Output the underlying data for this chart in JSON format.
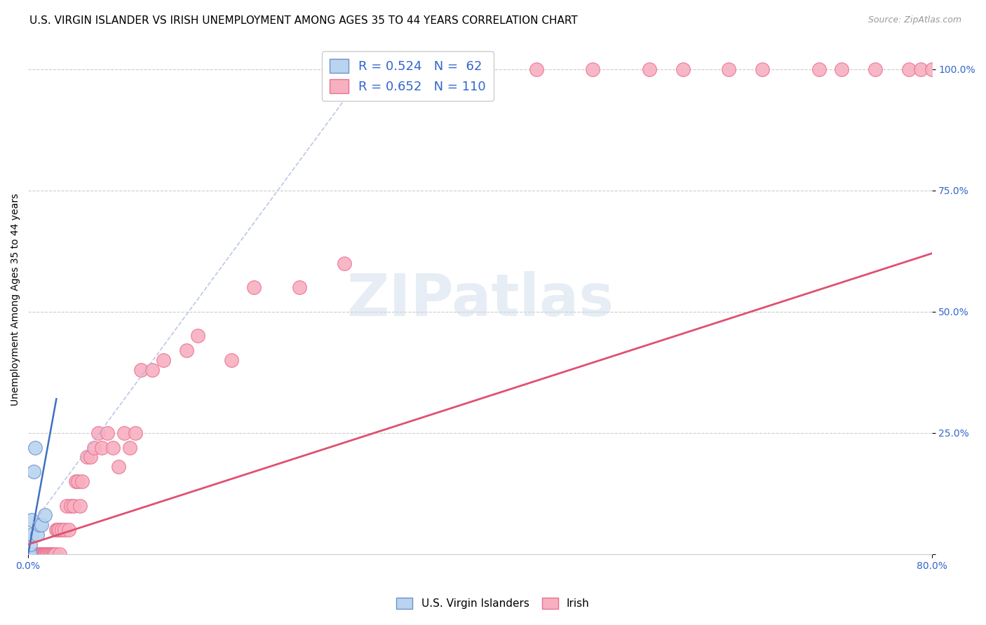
{
  "title": "U.S. VIRGIN ISLANDER VS IRISH UNEMPLOYMENT AMONG AGES 35 TO 44 YEARS CORRELATION CHART",
  "source": "Source: ZipAtlas.com",
  "ylabel": "Unemployment Among Ages 35 to 44 years",
  "yticks": [
    0.0,
    0.25,
    0.5,
    0.75,
    1.0
  ],
  "ytick_labels": [
    "",
    "25.0%",
    "50.0%",
    "75.0%",
    "100.0%"
  ],
  "xtick_left": "0.0%",
  "xtick_right": "80.0%",
  "xmin": 0.0,
  "xmax": 0.8,
  "ymin": 0.0,
  "ymax": 1.05,
  "vi_color": "#b8d4f0",
  "irish_color": "#f8b0c0",
  "vi_edge_color": "#7090c8",
  "irish_edge_color": "#e87090",
  "vi_R": 0.524,
  "vi_N": 62,
  "irish_R": 0.652,
  "irish_N": 110,
  "vi_scatter_x": [
    0.0,
    0.0,
    0.0,
    0.0,
    0.0,
    0.0,
    0.0,
    0.0,
    0.0,
    0.0,
    0.0,
    0.0,
    0.0,
    0.0,
    0.0,
    0.0,
    0.0,
    0.0,
    0.0,
    0.0,
    0.0,
    0.0,
    0.0,
    0.0,
    0.0,
    0.0,
    0.0,
    0.0,
    0.0,
    0.0,
    0.0,
    0.0,
    0.0,
    0.0,
    0.0,
    0.0,
    0.0,
    0.0,
    0.0,
    0.0,
    0.0,
    0.0,
    0.0,
    0.0,
    0.0,
    0.0,
    0.0,
    0.0,
    0.0,
    0.0,
    0.0,
    0.0,
    0.002,
    0.002,
    0.003,
    0.003,
    0.005,
    0.006,
    0.008,
    0.01,
    0.012,
    0.015
  ],
  "vi_scatter_y": [
    0.0,
    0.0,
    0.0,
    0.0,
    0.0,
    0.0,
    0.0,
    0.0,
    0.0,
    0.0,
    0.0,
    0.0,
    0.0,
    0.0,
    0.0,
    0.0,
    0.0,
    0.0,
    0.0,
    0.0,
    0.0,
    0.0,
    0.0,
    0.0,
    0.0,
    0.0,
    0.0,
    0.0,
    0.0,
    0.0,
    0.0,
    0.0,
    0.0,
    0.0,
    0.0,
    0.0,
    0.0,
    0.0,
    0.0,
    0.0,
    0.0,
    0.0,
    0.0,
    0.0,
    0.0,
    0.0,
    0.0,
    0.0,
    0.0,
    0.0,
    0.0,
    0.0,
    0.0,
    0.02,
    0.04,
    0.07,
    0.17,
    0.22,
    0.04,
    0.06,
    0.06,
    0.08
  ],
  "irish_scatter_x": [
    0.0,
    0.0,
    0.0,
    0.0,
    0.0,
    0.0,
    0.0,
    0.0,
    0.0,
    0.0,
    0.0,
    0.0,
    0.0,
    0.0,
    0.0,
    0.0,
    0.0,
    0.0,
    0.0,
    0.0,
    0.002,
    0.002,
    0.002,
    0.003,
    0.003,
    0.004,
    0.004,
    0.005,
    0.005,
    0.006,
    0.006,
    0.007,
    0.007,
    0.008,
    0.008,
    0.009,
    0.009,
    0.009,
    0.01,
    0.01,
    0.01,
    0.011,
    0.011,
    0.012,
    0.012,
    0.013,
    0.013,
    0.014,
    0.014,
    0.015,
    0.015,
    0.016,
    0.017,
    0.017,
    0.018,
    0.019,
    0.02,
    0.021,
    0.022,
    0.023,
    0.024,
    0.025,
    0.026,
    0.027,
    0.028,
    0.03,
    0.032,
    0.034,
    0.036,
    0.038,
    0.04,
    0.042,
    0.044,
    0.046,
    0.048,
    0.052,
    0.055,
    0.058,
    0.062,
    0.065,
    0.07,
    0.075,
    0.08,
    0.085,
    0.09,
    0.095,
    0.1,
    0.11,
    0.12,
    0.14,
    0.15,
    0.18,
    0.2,
    0.24,
    0.28,
    0.3,
    0.35,
    0.4,
    0.45,
    0.5,
    0.55,
    0.58,
    0.62,
    0.65,
    0.7,
    0.72,
    0.75,
    0.78,
    0.79,
    0.8
  ],
  "irish_scatter_y": [
    0.0,
    0.0,
    0.0,
    0.0,
    0.0,
    0.0,
    0.0,
    0.0,
    0.0,
    0.0,
    0.0,
    0.0,
    0.0,
    0.0,
    0.0,
    0.0,
    0.0,
    0.0,
    0.0,
    0.0,
    0.0,
    0.0,
    0.0,
    0.0,
    0.0,
    0.0,
    0.0,
    0.0,
    0.0,
    0.0,
    0.0,
    0.0,
    0.0,
    0.0,
    0.0,
    0.0,
    0.0,
    0.0,
    0.0,
    0.0,
    0.0,
    0.0,
    0.0,
    0.0,
    0.0,
    0.0,
    0.0,
    0.0,
    0.0,
    0.0,
    0.0,
    0.0,
    0.0,
    0.0,
    0.0,
    0.0,
    0.0,
    0.0,
    0.0,
    0.0,
    0.0,
    0.05,
    0.05,
    0.05,
    0.0,
    0.05,
    0.05,
    0.1,
    0.05,
    0.1,
    0.1,
    0.15,
    0.15,
    0.1,
    0.15,
    0.2,
    0.2,
    0.22,
    0.25,
    0.22,
    0.25,
    0.22,
    0.18,
    0.25,
    0.22,
    0.25,
    0.38,
    0.38,
    0.4,
    0.42,
    0.45,
    0.4,
    0.55,
    0.55,
    0.6,
    1.0,
    1.0,
    1.0,
    1.0,
    1.0,
    1.0,
    1.0,
    1.0,
    1.0,
    1.0,
    1.0,
    1.0,
    1.0,
    1.0,
    1.0
  ],
  "vi_trend_x1": 0.0,
  "vi_trend_y1": 0.0,
  "vi_trend_x2": 0.025,
  "vi_trend_y2": 0.32,
  "vi_trend_dashed_x1": 0.0,
  "vi_trend_dashed_y1": 0.05,
  "vi_trend_dashed_x2": 0.3,
  "vi_trend_dashed_y2": 1.0,
  "irish_trend_x1": 0.0,
  "irish_trend_y1": 0.02,
  "irish_trend_x2": 0.8,
  "irish_trend_y2": 0.62,
  "watermark": "ZIPatlas",
  "title_fontsize": 11,
  "axis_label_fontsize": 10,
  "tick_fontsize": 10,
  "source_fontsize": 9,
  "legend_vi_label": "R = 0.524   N =  62",
  "legend_irish_label": "R = 0.652   N = 110",
  "bottom_legend_vi": "U.S. Virgin Islanders",
  "bottom_legend_irish": "Irish"
}
